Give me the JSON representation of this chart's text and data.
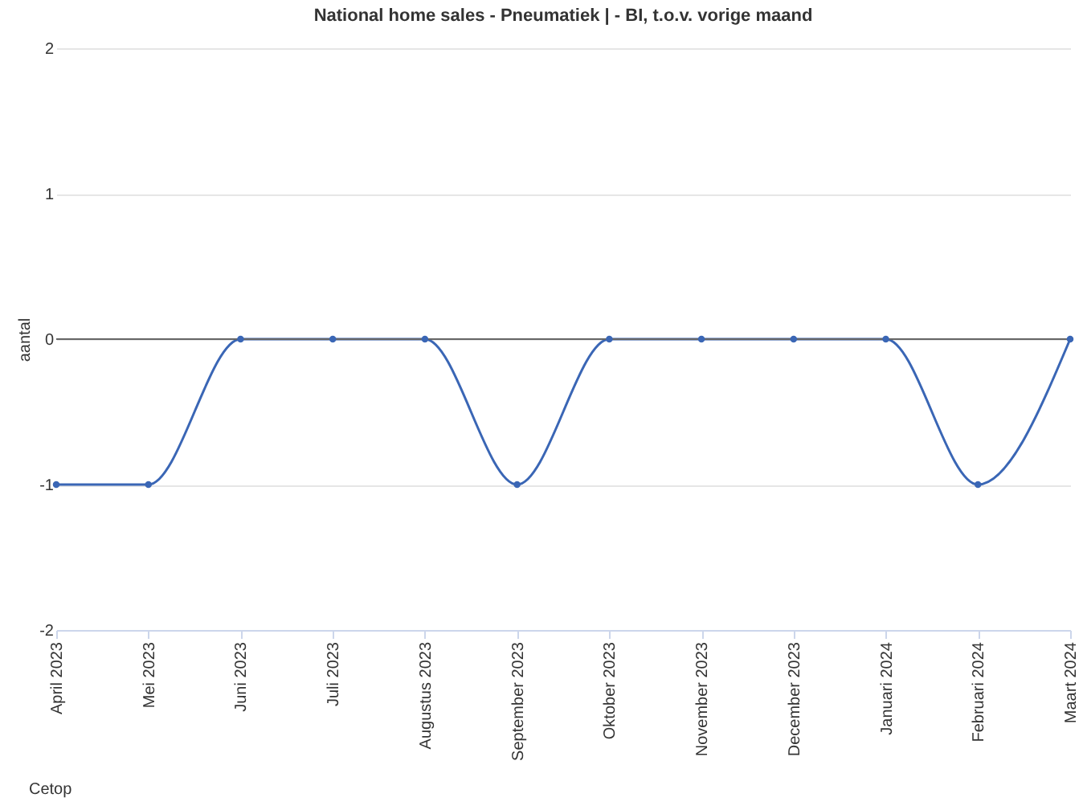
{
  "chart_data": {
    "type": "line",
    "title": "National home sales - Pneumatiek | - BI, t.o.v. vorige maand",
    "ylabel": "aantal",
    "categories": [
      "April 2023",
      "Mei 2023",
      "Juni 2023",
      "Juli 2023",
      "Augustus 2023",
      "September 2023",
      "Oktober 2023",
      "November 2023",
      "December 2023",
      "Januari 2024",
      "Februari 2024",
      "Maart 2024"
    ],
    "series": [
      {
        "color": "#3a66b5",
        "values": [
          -1,
          -1,
          0,
          0,
          0,
          -1,
          0,
          0,
          0,
          0,
          -1,
          0
        ]
      }
    ],
    "ylim": [
      -2,
      2
    ],
    "yticks": [
      -2,
      -1,
      0,
      1,
      2
    ],
    "grid": "y",
    "marker": "circle",
    "legend": false,
    "ref_lines": [
      {
        "axis": "y",
        "value": 0,
        "color": "#666666"
      }
    ],
    "annotations": [
      "Cetop"
    ]
  }
}
